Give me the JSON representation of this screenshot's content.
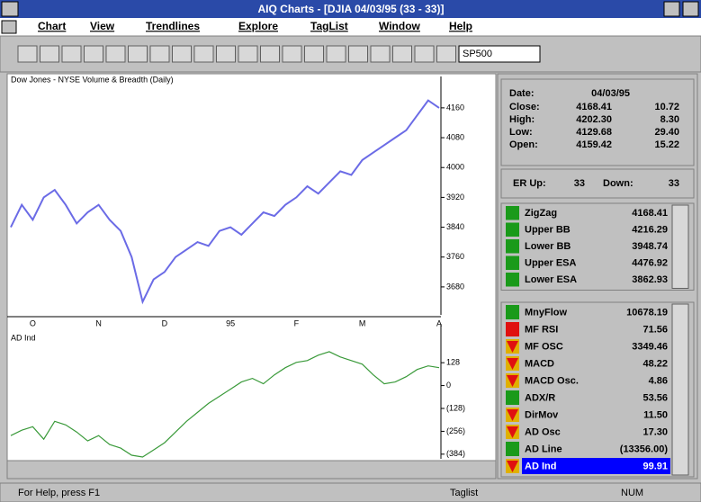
{
  "window": {
    "title": "AIQ Charts - [DJIA 04/03/95 (33 - 33)]",
    "menu": [
      "Chart",
      "View",
      "Trendlines",
      "Explore",
      "TagList",
      "Window",
      "Help"
    ],
    "symbol": "SP500"
  },
  "chart_data": [
    {
      "type": "line",
      "title": "Dow Jones - NYSE Volume & Breadth (Daily)",
      "color": "#6b6be6",
      "values": [
        3840,
        3900,
        3860,
        3920,
        3940,
        3900,
        3850,
        3880,
        3900,
        3860,
        3830,
        3760,
        3640,
        3700,
        3720,
        3760,
        3780,
        3800,
        3790,
        3830,
        3840,
        3820,
        3850,
        3880,
        3870,
        3900,
        3920,
        3950,
        3930,
        3960,
        3990,
        3980,
        4020,
        4040,
        4060,
        4080,
        4100,
        4140,
        4180,
        4160
      ],
      "x_labels": [
        {
          "index": 2,
          "label": "O"
        },
        {
          "index": 8,
          "label": "N"
        },
        {
          "index": 14,
          "label": "D"
        },
        {
          "index": 20,
          "label": "95"
        },
        {
          "index": 26,
          "label": "F"
        },
        {
          "index": 32,
          "label": "M"
        },
        {
          "index": 39,
          "label": "A"
        }
      ],
      "ylim": [
        3605,
        4220
      ],
      "yticks": [
        3680,
        3760,
        3840,
        3920,
        4000,
        4080,
        4160
      ]
    },
    {
      "type": "line",
      "title": "AD Ind",
      "color": "#3a9a3a",
      "values": [
        -280,
        -250,
        -230,
        -300,
        -200,
        -220,
        -260,
        -310,
        -280,
        -330,
        -350,
        -390,
        -400,
        -360,
        -320,
        -260,
        -200,
        -150,
        -100,
        -60,
        -20,
        20,
        40,
        10,
        60,
        100,
        130,
        140,
        170,
        190,
        160,
        140,
        120,
        60,
        10,
        20,
        50,
        90,
        110,
        100
      ],
      "ylim": [
        -410,
        295
      ],
      "yticks": [
        128,
        0,
        {
          "value": -128,
          "label": "(128)"
        },
        {
          "value": -256,
          "label": "(256)"
        },
        {
          "value": -384,
          "label": "(384)"
        }
      ]
    }
  ],
  "info": {
    "date_label": "Date:",
    "date": "04/03/95",
    "rows": [
      [
        "Close:",
        "4168.41",
        "10.72"
      ],
      [
        "High:",
        "4202.30",
        "8.30"
      ],
      [
        "Low:",
        "4129.68",
        "29.40"
      ],
      [
        "Open:",
        "4159.42",
        "15.22"
      ]
    ],
    "er_up_label": "ER Up:",
    "er_up": "33",
    "down_label": "Down:",
    "down": "33"
  },
  "list1": [
    {
      "name": "ZigZag",
      "value": "4168.41",
      "signal": "up"
    },
    {
      "name": "Upper BB",
      "value": "4216.29",
      "signal": "up"
    },
    {
      "name": "Lower BB",
      "value": "3948.74",
      "signal": "up"
    },
    {
      "name": "Upper ESA",
      "value": "4476.92",
      "signal": "up"
    },
    {
      "name": "Lower ESA",
      "value": "3862.93",
      "signal": "up"
    }
  ],
  "list2": [
    {
      "name": "MnyFlow",
      "value": "10678.19",
      "signal": "up"
    },
    {
      "name": "MF RSI",
      "value": "71.56",
      "signal": "flat"
    },
    {
      "name": "MF OSC",
      "value": "3349.46",
      "signal": "down"
    },
    {
      "name": "MACD",
      "value": "48.22",
      "signal": "down"
    },
    {
      "name": "MACD Osc.",
      "value": "4.86",
      "signal": "down"
    },
    {
      "name": "ADX/R",
      "value": "53.56",
      "signal": "up"
    },
    {
      "name": "DirMov",
      "value": "11.50",
      "signal": "down"
    },
    {
      "name": "AD Osc",
      "value": "17.30",
      "signal": "down"
    },
    {
      "name": "AD Line",
      "value": "(13356.00)",
      "signal": "up"
    },
    {
      "name": "AD Ind",
      "value": "99.91",
      "signal": "down",
      "selected": true
    }
  ],
  "status": {
    "help": "For Help, press F1",
    "panel": "Taglist",
    "num": "NUM"
  }
}
